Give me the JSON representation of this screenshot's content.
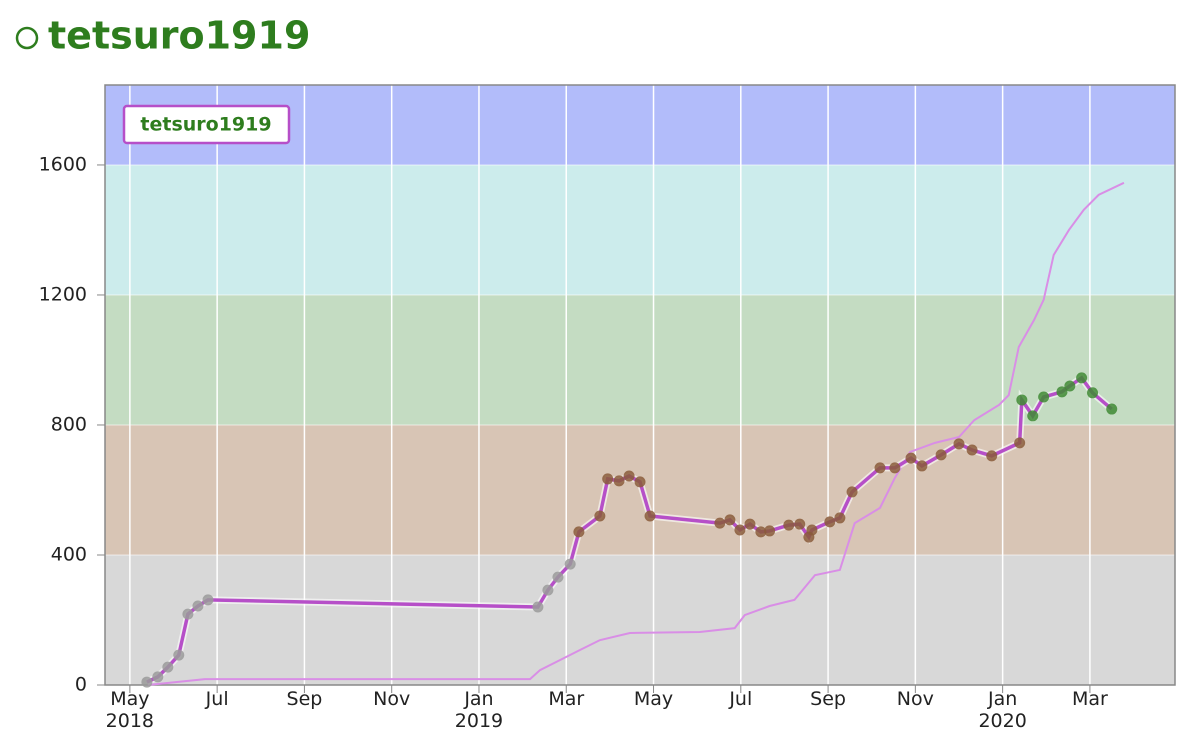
{
  "chart_data": {
    "type": "line",
    "title": "tetsuro1919",
    "xticks": [
      {
        "value": 4,
        "label": "May\n2018"
      },
      {
        "value": 6,
        "label": "Jul"
      },
      {
        "value": 8,
        "label": "Sep"
      },
      {
        "value": 10,
        "label": "Nov"
      },
      {
        "value": 12,
        "label": "Jan\n2019"
      },
      {
        "value": 14,
        "label": "Mar"
      },
      {
        "value": 16,
        "label": "May"
      },
      {
        "value": 18,
        "label": "Jul"
      },
      {
        "value": 20,
        "label": "Sep"
      },
      {
        "value": 22,
        "label": "Nov"
      },
      {
        "value": 24,
        "label": "Jan\n2020"
      },
      {
        "value": 26,
        "label": "Mar"
      }
    ],
    "xlim": [
      3.43,
      27.95
    ],
    "ylim": [
      0,
      1846
    ],
    "yticks": [
      0,
      400,
      800,
      1200,
      1600
    ],
    "grid": true,
    "legend": "top-left",
    "bands": [
      {
        "from": 0,
        "to": 400,
        "color": "#d8d8d8"
      },
      {
        "from": 400,
        "to": 800,
        "color": "#d8c5b5"
      },
      {
        "from": 800,
        "to": 1200,
        "color": "#c4dcc2"
      },
      {
        "from": 1200,
        "to": 1600,
        "color": "#ccecec"
      },
      {
        "from": 1600,
        "to": 1846,
        "color": "#b2bcfa"
      }
    ],
    "series": [
      {
        "name": "tetsuro1919",
        "color": "#b64fc8",
        "x": [
          4.39,
          4.64,
          4.87,
          5.12,
          5.33,
          5.56,
          5.79,
          13.35,
          13.58,
          13.81,
          14.09,
          14.29,
          14.77,
          14.95,
          15.21,
          15.44,
          15.69,
          15.92,
          17.52,
          17.75,
          17.98,
          18.21,
          18.46,
          18.66,
          19.1,
          19.35,
          19.56,
          19.63,
          20.04,
          20.27,
          20.55,
          21.19,
          21.53,
          21.9,
          22.15,
          22.59,
          23.0,
          23.3,
          23.75,
          24.39,
          24.44,
          24.69,
          24.94,
          25.36,
          25.54,
          25.81,
          26.06,
          26.5
        ],
        "values": [
          9,
          25,
          55,
          92,
          218,
          243,
          262,
          240,
          292,
          332,
          372,
          471,
          520,
          634,
          628,
          643,
          625,
          520,
          498,
          508,
          477,
          495,
          471,
          474,
          492,
          495,
          455,
          477,
          502,
          514,
          594,
          668,
          668,
          698,
          674,
          708,
          742,
          723,
          705,
          745,
          877,
          828,
          886,
          902,
          920,
          945,
          899,
          849
        ]
      },
      {
        "color": "#d98ee6",
        "x": [
          4.41,
          5.72,
          13.17,
          13.4,
          13.86,
          14.32,
          14.77,
          15.46,
          17.06,
          17.86,
          18.09,
          18.66,
          19.23,
          19.7,
          20.27,
          20.61,
          21.19,
          21.53,
          21.88,
          22.45,
          23.0,
          23.35,
          23.92,
          24.14,
          24.37,
          24.72,
          24.94,
          25.17,
          25.52,
          25.86,
          26.2,
          26.78
        ],
        "values": [
          0,
          18,
          18,
          46,
          77,
          108,
          138,
          160,
          163,
          175,
          215,
          243,
          262,
          338,
          354,
          498,
          545,
          637,
          717,
          745,
          763,
          815,
          862,
          892,
          1040,
          1123,
          1185,
          1323,
          1400,
          1462,
          1508,
          1545
        ]
      }
    ]
  }
}
